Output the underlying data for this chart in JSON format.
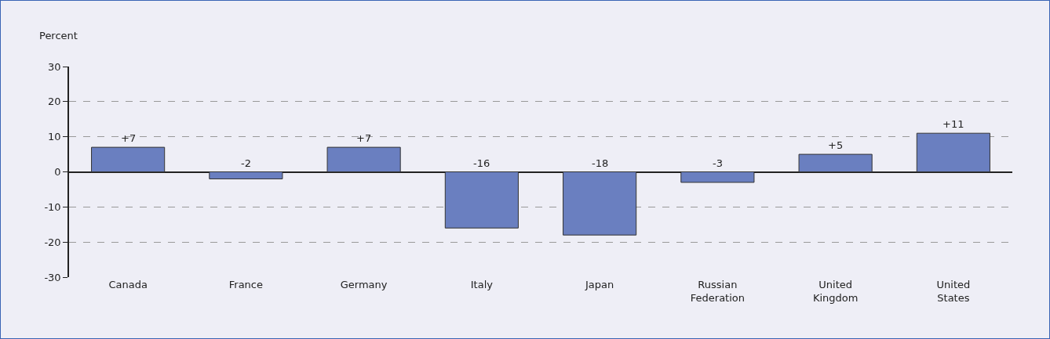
{
  "chart_data": {
    "type": "bar",
    "ylabel": "Percent",
    "categories": [
      "Canada",
      "France",
      "Germany",
      "Italy",
      "Japan",
      "Russian Federation",
      "United Kingdom",
      "United States"
    ],
    "values": [
      7,
      -2,
      7,
      -16,
      -18,
      -3,
      5,
      11
    ],
    "value_labels": [
      "+7",
      "-2",
      "+7",
      "-16",
      "-18",
      "-3",
      "+5",
      "+11"
    ],
    "color": "#6a7fc0",
    "ylim": [
      -30,
      30
    ],
    "yticks": [
      -30,
      -20,
      -10,
      0,
      10,
      20,
      30
    ],
    "grid": "y",
    "legend": false
  }
}
